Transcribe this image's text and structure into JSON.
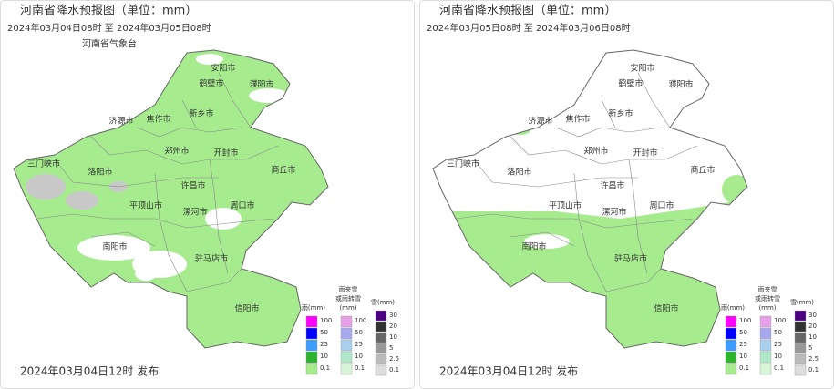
{
  "panels": [
    {
      "title": "河南省降水预报图（单位：mm）",
      "time_range": "2024年03月04日08时 至 2024年03月05日08时",
      "issuer": "河南省气象台",
      "cities": [
        "安阳市",
        "鹤壁市",
        "濮阳市",
        "新乡市",
        "济源市",
        "焦作市",
        "郑州市",
        "开封市",
        "商丘市",
        "三门峡市",
        "洛阳市",
        "许昌市",
        "平顶山市",
        "漯河市",
        "周口市",
        "南阳市",
        "驻马店市",
        "信阳市"
      ],
      "legend": {
        "rain": {
          "title": [
            "雨(mm)"
          ],
          "labels": [
            "100",
            "50",
            "25",
            "10",
            "0.1"
          ]
        },
        "sleet": {
          "title": [
            "雨夹雪",
            "或雨转雪",
            "(mm)"
          ],
          "labels": [
            "100",
            "50",
            "25",
            "10",
            "0.1"
          ]
        },
        "snow": {
          "title": [
            "雪(mm)"
          ],
          "labels": [
            "30",
            "20",
            "10",
            "5",
            "2.5",
            "0.1"
          ]
        }
      },
      "release": "2024年03月04日12时 发布"
    },
    {
      "title": "河南省降水预报图（单位：mm）",
      "time_range": "2024年03月05日08时 至 2024年03月06日08时",
      "cities": [
        "安阳市",
        "鹤壁市",
        "濮阳市",
        "新乡市",
        "济源市",
        "焦作市",
        "郑州市",
        "开封市",
        "商丘市",
        "三门峡市",
        "洛阳市",
        "许昌市",
        "平顶山市",
        "漯河市",
        "周口市",
        "南阳市",
        "驻马店市",
        "信阳市"
      ],
      "legend": {
        "rain": {
          "title": [
            "雨(mm)"
          ],
          "labels": [
            "100",
            "50",
            "25",
            "10",
            "0.1"
          ]
        },
        "sleet": {
          "title": [
            "雨夹雪",
            "或雨转雪",
            "(mm)"
          ],
          "labels": [
            "100",
            "50",
            "25",
            "10",
            "0.1"
          ]
        },
        "snow": {
          "title": [
            "雪(mm)"
          ],
          "labels": [
            "30",
            "20",
            "10",
            "5",
            "2.5",
            "0.1"
          ]
        }
      },
      "release": "2024年03月04日12时 发布"
    }
  ]
}
